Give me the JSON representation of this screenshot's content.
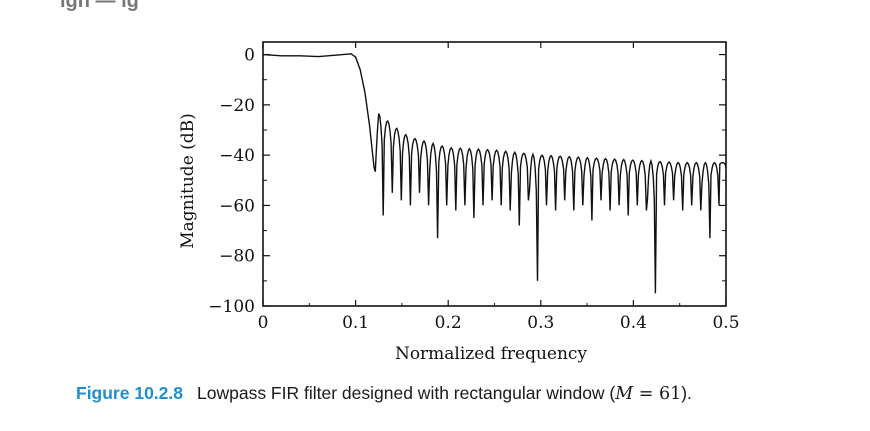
{
  "chart_data": {
    "type": "line",
    "xlabel": "Normalized frequency",
    "ylabel": "Magnitude (dB)",
    "xlim": [
      0,
      0.5
    ],
    "ylim": [
      -100,
      5
    ],
    "x_ticks": [
      "0",
      "0.1",
      "0.2",
      "0.3",
      "0.4",
      "0.5"
    ],
    "y_ticks": [
      "0",
      "−20",
      "−40",
      "−60",
      "−80",
      "−100"
    ],
    "x_tick_values": [
      0,
      0.1,
      0.2,
      0.3,
      0.4,
      0.5
    ],
    "y_tick_values": [
      0,
      -20,
      -40,
      -60,
      -80,
      -100
    ],
    "grid": false,
    "series": [
      {
        "x": [
          0,
          0.02,
          0.04,
          0.06,
          0.08,
          0.095,
          0.1,
          0.105,
          0.11,
          0.115,
          0.12,
          0.125,
          0.13,
          0.14,
          0.15,
          0.16,
          0.2,
          0.25,
          0.3,
          0.35,
          0.4,
          0.45,
          0.5
        ],
        "y": [
          0,
          -0.5,
          -0.5,
          -0.8,
          -0.2,
          0.3,
          -1,
          -6,
          -15,
          -28,
          -45,
          -23,
          -25,
          -28,
          -31,
          -33,
          -37,
          -38,
          -40,
          -41,
          -42,
          -43,
          -43
        ]
      }
    ]
  },
  "caption": {
    "figure_number": "Figure 10.2.8",
    "text": "Lowpass FIR filter designed with rectangular window (",
    "math_var": "M",
    "math_rest": " = 61",
    "close": ")."
  },
  "header_fragment": "ign — ig"
}
